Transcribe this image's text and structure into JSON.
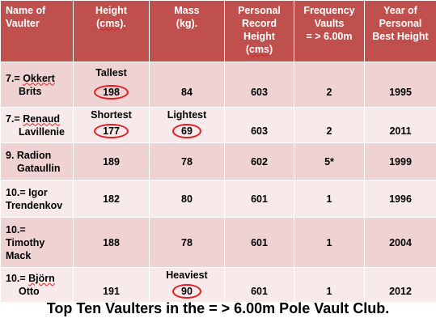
{
  "headers": {
    "name": [
      "Name of",
      "Vaulter"
    ],
    "height": [
      "Height",
      "(cms)."
    ],
    "mass": [
      "Mass",
      "(kg)."
    ],
    "record": [
      "Personal",
      "Record",
      "Height",
      "(cms)"
    ],
    "frequency": [
      "Frequency",
      "Vaults",
      "= > 6.00m"
    ],
    "year": [
      "Year of",
      "Personal",
      "Best Height"
    ]
  },
  "rows": [
    {
      "name": [
        "7.= Okkert",
        "Brits"
      ],
      "height": "198",
      "height_note": "Tallest",
      "mass": "84",
      "mass_note": "",
      "record": "603",
      "frequency": "2",
      "year": "1995"
    },
    {
      "name": [
        "7.= Renaud",
        "Lavillenie"
      ],
      "height": "177",
      "height_note": "Shortest",
      "mass": "69",
      "mass_note": "Lightest",
      "record": "603",
      "frequency": "2",
      "year": "2011"
    },
    {
      "name": [
        "9. Radion",
        "Gataullin"
      ],
      "height": "189",
      "height_note": "",
      "mass": "78",
      "mass_note": "",
      "record": "602",
      "frequency": "5*",
      "year": "1999"
    },
    {
      "name": [
        "10.= Igor",
        "Trendenkov"
      ],
      "height": "182",
      "height_note": "",
      "mass": "80",
      "mass_note": "",
      "record": "601",
      "frequency": "1",
      "year": "1996"
    },
    {
      "name": [
        "10.=",
        "Timothy",
        "Mack"
      ],
      "height": "188",
      "height_note": "",
      "mass": "78",
      "mass_note": "",
      "record": "601",
      "frequency": "1",
      "year": "2004"
    },
    {
      "name": [
        "10.= Björn",
        "Otto"
      ],
      "height": "191",
      "height_note": "",
      "mass": "90",
      "mass_note": "Heaviest",
      "record": "601",
      "frequency": "1",
      "year": "2012"
    }
  ],
  "caption": "Top Ten Vaulters in the = > 6.00m Pole Vault Club.",
  "colors": {
    "header_bg": "#c0504d",
    "row_dark": "#efd3d2",
    "row_light": "#f8eaea",
    "circle": "#e02020"
  }
}
